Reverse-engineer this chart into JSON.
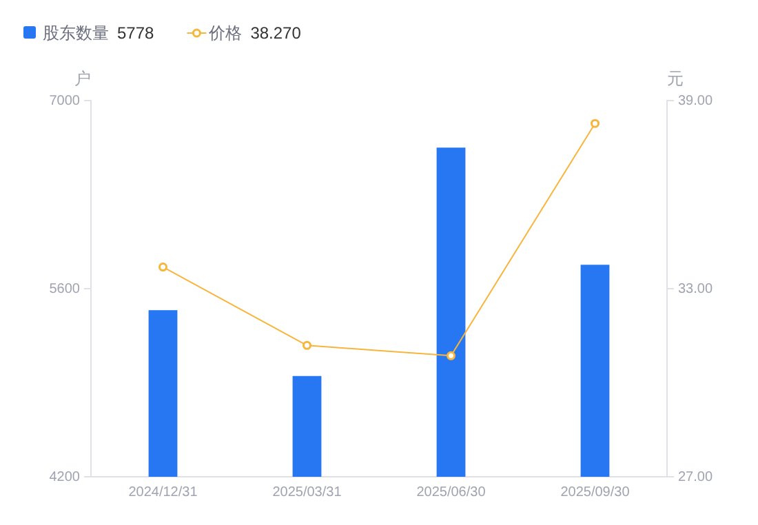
{
  "chart_data": {
    "type": "bar",
    "ylabel": "户",
    "y2label": "元",
    "categories": [
      "2024/12/31",
      "2025/03/31",
      "2025/06/30",
      "2025/09/30"
    ],
    "series": [
      {
        "name": "股东数量",
        "color": "#2777f3",
        "values": [
          5440,
          4950,
          6650,
          5778
        ]
      },
      {
        "name": "价格",
        "type": "line",
        "axis": "y2",
        "color": "#f7b53b",
        "marker": "circle",
        "values": [
          33.69,
          31.19,
          30.86,
          38.27
        ]
      }
    ],
    "annotations": [
      "5778",
      "38.270"
    ],
    "ylim": [
      4200,
      7000
    ],
    "yticks": [
      4200,
      5600,
      7000
    ],
    "y2lim": [
      27,
      39
    ],
    "y2ticks": [
      {
        "value": 27,
        "label": "27.00"
      },
      {
        "value": 33,
        "label": "33.00"
      },
      {
        "value": 39,
        "label": "39.00"
      }
    ],
    "legend": "top left",
    "grid": false
  }
}
